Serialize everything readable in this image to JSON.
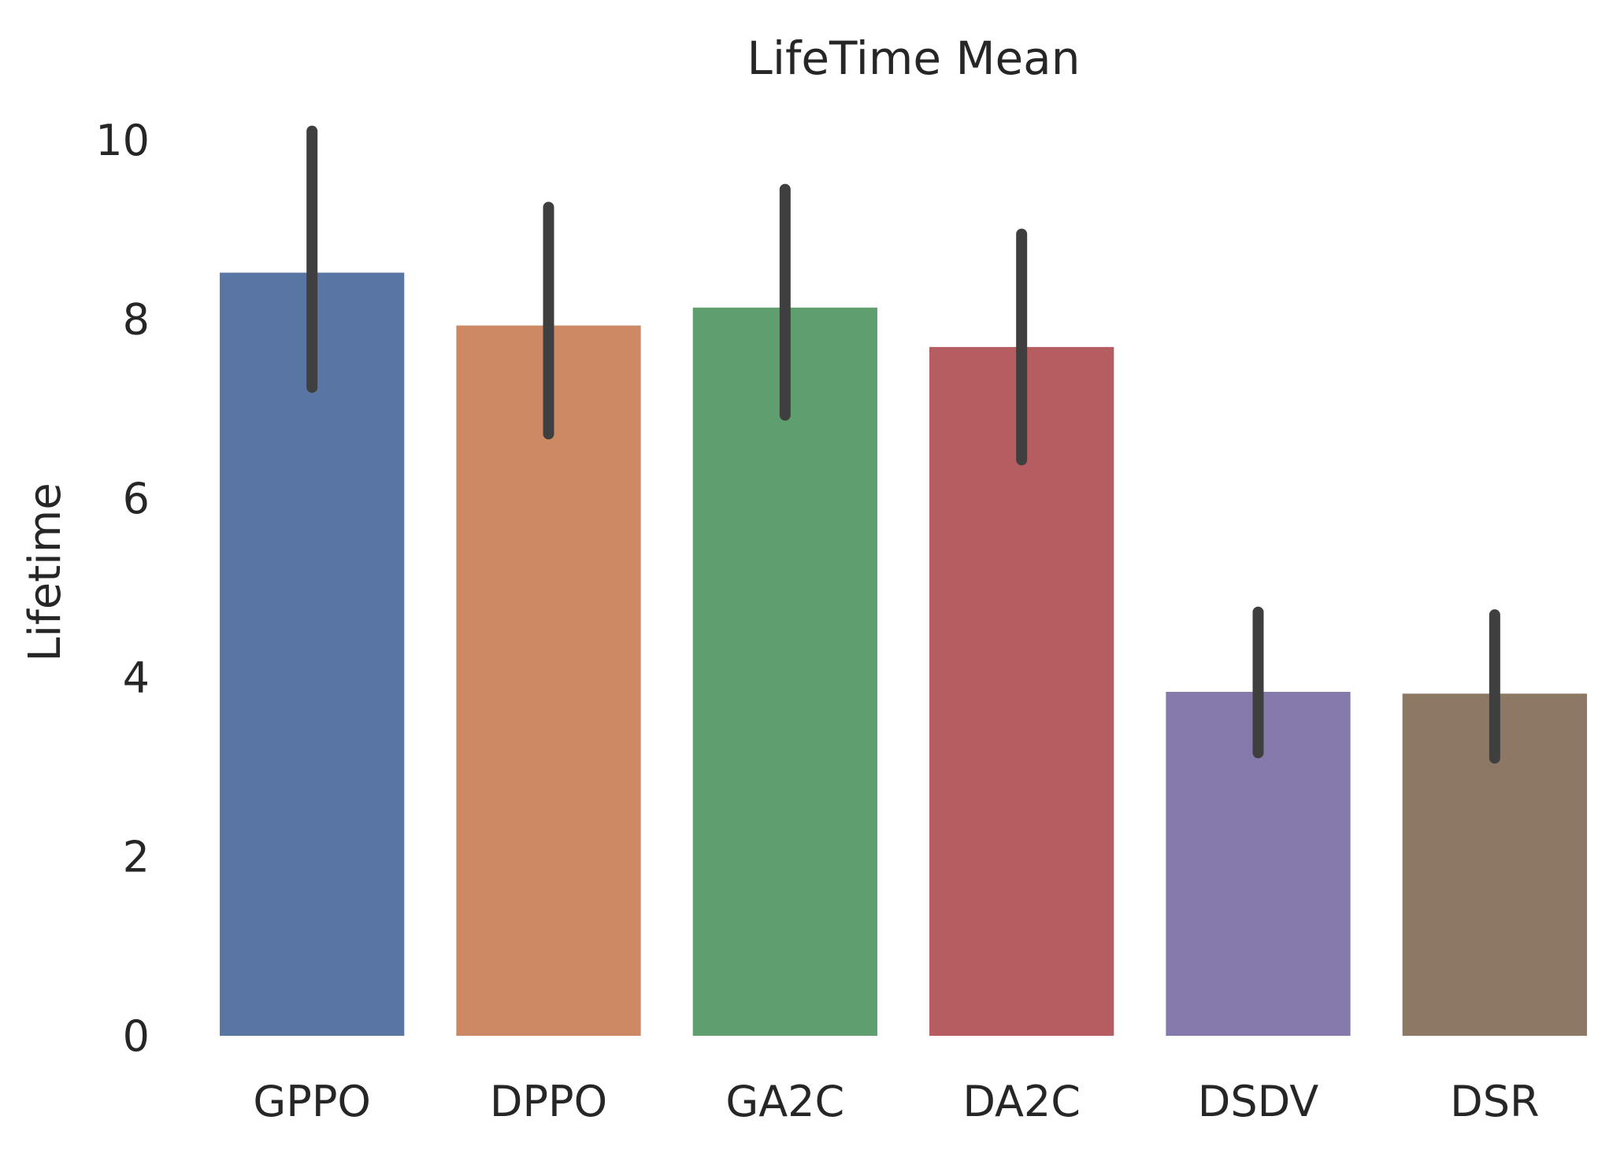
{
  "chart_data": {
    "type": "bar",
    "title": "LifeTime Mean",
    "xlabel": "",
    "ylabel": "Lifetime",
    "ylim": [
      0,
      10.5
    ],
    "yticks": [
      "0",
      "2",
      "4",
      "6",
      "8",
      "10"
    ],
    "grid": false,
    "categories": [
      "GPPO",
      "DPPO",
      "GA2C",
      "DA2C",
      "DSDV",
      "DSR"
    ],
    "values": [
      8.52,
      7.93,
      8.13,
      7.69,
      3.84,
      3.82
    ],
    "error_low": [
      7.24,
      6.72,
      6.93,
      6.43,
      3.16,
      3.1
    ],
    "error_high": [
      10.1,
      9.25,
      9.45,
      8.95,
      4.73,
      4.7
    ],
    "colors": [
      "#5975a4",
      "#cc8963",
      "#5f9e6e",
      "#b55d60",
      "#857aab",
      "#8d7866"
    ],
    "error_color": "#3f3f3f"
  }
}
